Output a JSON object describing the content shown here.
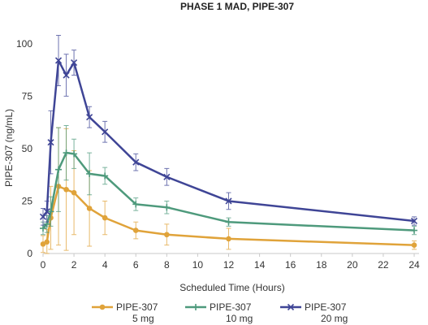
{
  "chart_data": {
    "type": "line",
    "title": "PHASE 1 MAD, PIPE-307",
    "xlabel": "Scheduled Time (Hours)",
    "ylabel": "PIPE-307 (ng/mL)",
    "xlim": [
      0,
      24
    ],
    "ylim": [
      0,
      110
    ],
    "xticks": [
      0,
      2,
      4,
      6,
      8,
      10,
      12,
      14,
      16,
      18,
      20,
      22,
      24
    ],
    "yticks": [
      0,
      25,
      50,
      75,
      100
    ],
    "grid": false,
    "legend_position": "bottom",
    "series": [
      {
        "name": "PIPE-307",
        "dose": "5 mg",
        "color": "#E0A33A",
        "marker": "circle",
        "x": [
          0,
          0.25,
          0.5,
          1,
          1.5,
          2,
          3,
          4,
          6,
          8,
          12,
          24
        ],
        "y": [
          4.5,
          5.5,
          17,
          32,
          30.5,
          29,
          21.5,
          17,
          11,
          9,
          7,
          4
        ],
        "err": [
          4,
          6,
          15,
          28,
          29,
          20,
          18,
          8,
          4,
          5,
          5,
          2
        ]
      },
      {
        "name": "PIPE-307",
        "dose": "10 mg",
        "color": "#4E9A7C",
        "marker": "plus",
        "x": [
          0,
          0.25,
          0.5,
          1,
          1.5,
          2,
          3,
          4,
          6,
          8,
          12,
          24
        ],
        "y": [
          12,
          14,
          20,
          40,
          48,
          47.5,
          38,
          37,
          23.5,
          22,
          15,
          11
        ],
        "err": [
          3,
          4,
          7,
          20,
          13,
          7,
          10,
          4,
          3,
          3,
          2,
          2
        ]
      },
      {
        "name": "PIPE-307",
        "dose": "20 mg",
        "color": "#3F4596",
        "marker": "x",
        "x": [
          0,
          0.25,
          0.5,
          1,
          1.5,
          2,
          3,
          4,
          6,
          8,
          12,
          24
        ],
        "y": [
          17.5,
          20,
          53,
          92,
          85,
          91,
          65,
          58,
          43.5,
          36.5,
          25,
          15.5
        ],
        "err": [
          4,
          5,
          15,
          12,
          10,
          6,
          5,
          5,
          4,
          4,
          4,
          2
        ]
      }
    ]
  }
}
